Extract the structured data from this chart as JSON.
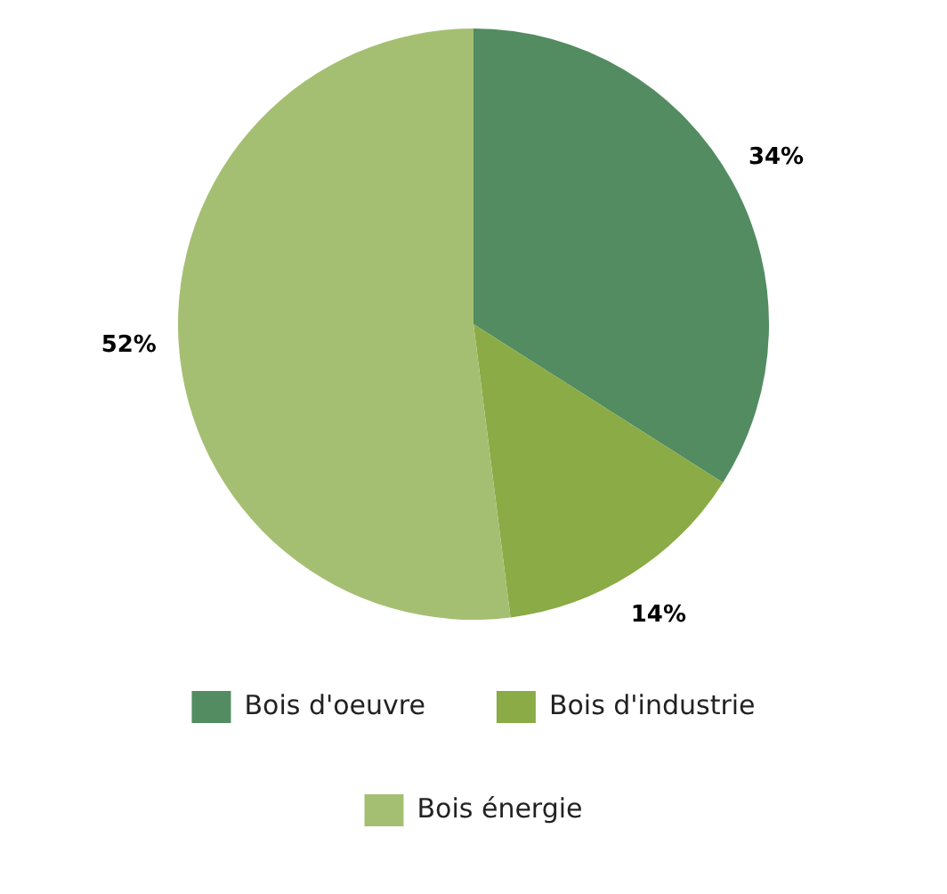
{
  "chart_data": {
    "type": "pie",
    "categories": [
      "Bois d'oeuvre",
      "Bois d'industrie",
      "Bois énergie"
    ],
    "values": [
      34,
      14,
      52
    ],
    "colors": [
      "#528c60",
      "#8aab45",
      "#a5bf72"
    ],
    "value_labels": [
      "34%",
      "14%",
      "52%"
    ],
    "legend": "bottom"
  }
}
